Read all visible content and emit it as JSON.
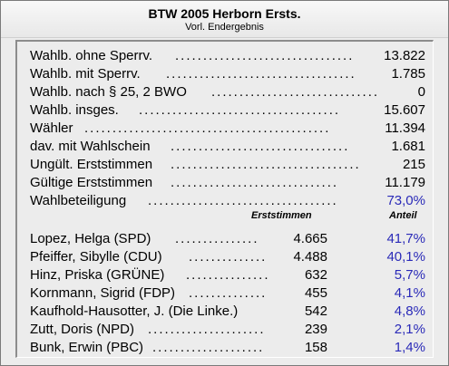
{
  "header": {
    "title": "BTW 2005 Herborn Ersts.",
    "subtitle": "Vorl. Endergebnis"
  },
  "summary": [
    {
      "label": "Wahlb. ohne Sperrv.",
      "value": "13.822"
    },
    {
      "label": "Wahlb. mit Sperrv.",
      "value": "1.785"
    },
    {
      "label": "Wahlb. nach § 25, 2 BWO",
      "value": "0"
    },
    {
      "label": "Wahlb. insges.",
      "value": "15.607"
    },
    {
      "label": "Wähler",
      "value": "11.394"
    },
    {
      "label": "dav. mit Wahlschein",
      "value": "1.681"
    },
    {
      "label": "Ungült. Erststimmen",
      "value": "215"
    },
    {
      "label": "Gültige Erststimmen",
      "value": "11.179"
    },
    {
      "label": "Wahlbeteiligung",
      "value": "73,0%"
    }
  ],
  "columns": {
    "votes": "Erststimmen",
    "share": "Anteil"
  },
  "candidates": [
    {
      "name": "Lopez, Helga (SPD)",
      "votes": "4.665",
      "share": "41,7%"
    },
    {
      "name": "Pfeiffer, Sibylle (CDU)",
      "votes": "4.488",
      "share": "40,1%"
    },
    {
      "name": "Hinz, Priska (GRÜNE)",
      "votes": "632",
      "share": "5,7%"
    },
    {
      "name": "Kornmann, Sigrid (FDP)",
      "votes": "455",
      "share": "4,1%"
    },
    {
      "name": "Kaufhold-Hausotter, J. (Die Linke.)",
      "votes": "542",
      "share": "4,8%"
    },
    {
      "name": "Zutt, Doris (NPD)",
      "votes": "239",
      "share": "2,1%"
    },
    {
      "name": "Bunk, Erwin (PBC)",
      "votes": "158",
      "share": "1,4%"
    }
  ],
  "colors": {
    "accent": "#2a2ab8",
    "background": "#ececec"
  }
}
